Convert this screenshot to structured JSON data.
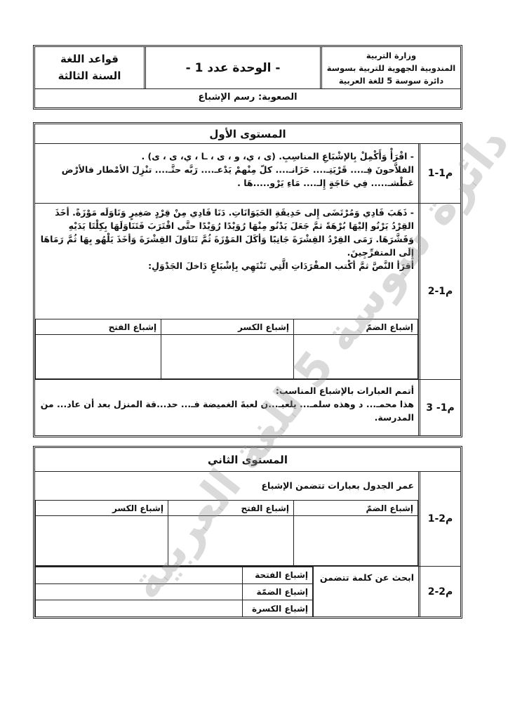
{
  "header": {
    "subject": "قواعد اللغة",
    "grade": "السنة الثالثة",
    "unit": "- الوحدة عدد 1 -",
    "ministry": "وزارة التربية",
    "region": "المندوبية الجهوية للتربية بسوسة",
    "circle": "دائرة سوسة 5 للغة العربية",
    "difficulty": "الصعوبة: رسم الإشباع"
  },
  "level1": {
    "title": "المستوى الأول",
    "ex1": {
      "label": "م1-1",
      "line1": "- اقْرَأْ وَأَكْمِلْ بِالإشْبَاعِ المناسِبِ. (ى ، ي، و ، ى ، ـا ، ي، ى ، ى) .",
      "line2": "الفلاَّحونَ فِـ.... قَرْيَتِـ.... حَزَانـ.... كلّ مِنْهمْ يَدْعـ.... رَبَّه حتَّـ.... تنْزِلَ الأمْطار فالأرْض",
      "line3": "عَطْشـ..... فِي حَاجَةٍ إِلـ.... مَاءِ يَرْو.....هَا ."
    },
    "ex2": {
      "label": "م1-2",
      "text": "- ذَهَبَ فَادِي وَمُرْتَضَى إِلى حَدِيقَةِ الحَيَوَانَاتِ. دَنَا فَادِي مِنْ قِرْدٍ صَغِيرٍ وَنَاوَلَه مَوْزَةً. أخَذَ القِرْدُ يَرْنُو إليْهَا بُرْهَةً ثمَّ جَعَلَ يَدْنُو مِنْهَا رُوَيْدًا رُوَيْدًا حتَّى اقْتَرَبَ فَتَنَاوَلَهَا بِكِلْتَا يَدَيْهِ وَقَشَّرَهَا. رَمَى القِرْدُ القِشْرَةَ جَانِبًا وَأكَلَ المَوْزَةَ ثُمَّ تَنَاوَلَ القِشْرَةَ وَأخَذَ يَلْهُو بِهَا ثُمَّ رَمَاهَا إِلَى المتفرِّجِينَ.",
      "instruction": "أقرَأ النَّصَّ ثمَّ أكْتب المفْرَدَاتِ الَّتِي تَنْتَهِي بِإشْبَاعٍ دَاخلَ الجَدْوَلِ:",
      "columns": [
        "إشباع الضمّ",
        "إشباع الكسر",
        "إشباع الفتح"
      ]
    },
    "ex3": {
      "label": "م1- 3",
      "instruction": "أتمم العبارات بالإشباع المناسب:",
      "text": "هذا محمـ... د وهذه سلمـ... يلعبـ...ن لعبةَ الغميضة فـ... حد...قة المنزل بعد أن عاد... من المدرسة."
    }
  },
  "level2": {
    "title": "المستوى الثاني",
    "ex1": {
      "label": "م2-1",
      "instruction": "عمر الجدول بعبارات تتضمن الإشباع",
      "columns": [
        "إشباع الضمّ",
        "إشباع الفتح",
        "إشباع الكسر"
      ]
    },
    "ex2": {
      "label": "م2-2",
      "instruction": "ابحث عن كلمة تتضمن",
      "rows": [
        "إشباع الفتحة",
        "إشباع الضمّة",
        "إشباع الكسرة"
      ]
    }
  },
  "watermark": "دائرة سوسة 5 للغة العربية"
}
